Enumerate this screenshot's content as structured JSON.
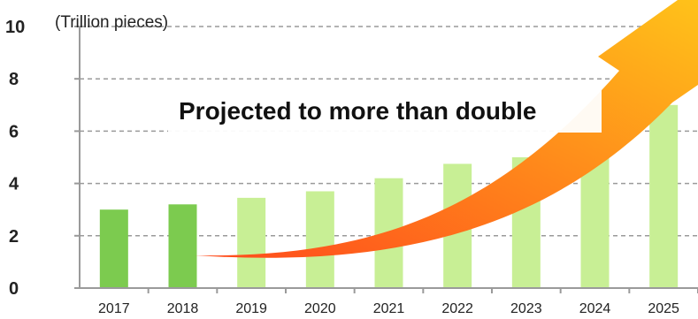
{
  "chart_data": {
    "type": "bar",
    "categories": [
      "2017",
      "2018",
      "2019",
      "2020",
      "2021",
      "2022",
      "2023",
      "2024",
      "2025"
    ],
    "values": [
      3.0,
      3.2,
      3.45,
      3.7,
      4.2,
      4.75,
      5.0,
      6.0,
      7.0
    ],
    "yticks": [
      "0",
      "2",
      "4",
      "6",
      "8",
      "10"
    ],
    "ylim": [
      0,
      10
    ],
    "y_unit": "(Trillion pieces)",
    "annotation": "Projected to more than double",
    "grid": "dashed horizontal",
    "colors": {
      "actual_bar": "#7ccb4f",
      "projected_bar": "#c8ef95",
      "arrow_start": "#ff4a1c",
      "arrow_end": "#ffc21a",
      "axis": "#9a9a9a"
    },
    "actual_count": 2
  }
}
